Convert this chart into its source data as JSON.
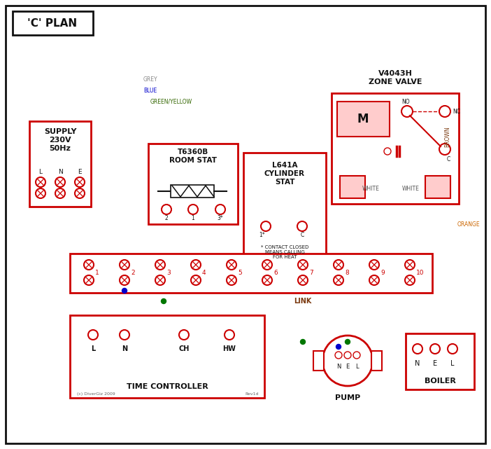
{
  "red": "#cc0000",
  "blue": "#0000cc",
  "green": "#007700",
  "gy": "#336600",
  "brown": "#7B3A10",
  "grey": "#888888",
  "orange": "#cc6600",
  "black": "#111111",
  "white": "#ffffff",
  "pink": "#ffcccc",
  "plan_title": "'C' PLAN",
  "supply_label": "SUPPLY\n230V\n50Hz",
  "zv_label": "V4043H\nZONE VALVE",
  "rs_label": "T6360B\nROOM STAT",
  "cs_label": "L641A\nCYLINDER\nSTAT",
  "tc_label": "TIME CONTROLLER",
  "pump_label": "PUMP",
  "boiler_label": "BOILER",
  "contact_note": "* CONTACT CLOSED\nMEANS CALLING\nFOR HEAT",
  "term_nums": [
    "1",
    "2",
    "3",
    "4",
    "5",
    "6",
    "7",
    "8",
    "9",
    "10"
  ],
  "link_label": "LINK",
  "grey_lbl": "GREY",
  "blue_lbl": "BLUE",
  "gy_lbl": "GREEN/YELLOW",
  "brown_lbl": "BROWN",
  "white_lbl": "WHITE",
  "orange_lbl": "ORANGE",
  "copyright": "(c) DiverGiz 2009",
  "rev": "Rev1d"
}
